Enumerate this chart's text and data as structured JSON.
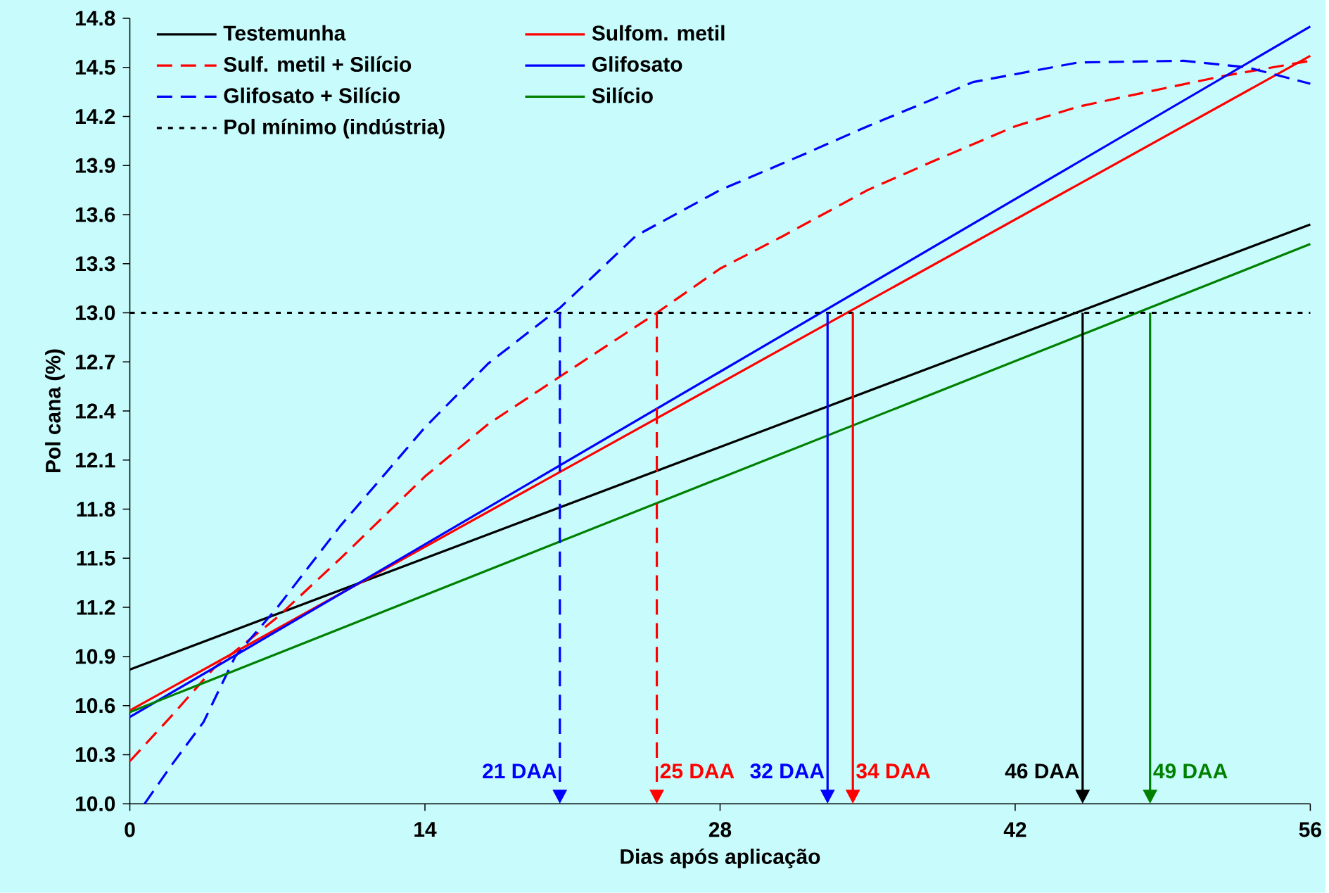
{
  "chart_data": {
    "type": "line",
    "xlabel": "Dias após aplicação",
    "ylabel": "Pol  cana  (%)",
    "xlim": [
      0,
      56
    ],
    "ylim": [
      10,
      14.8
    ],
    "xticks": [
      0,
      14,
      28,
      42,
      56
    ],
    "yticks": [
      {
        "value": 10,
        "label": "10.0"
      },
      10.3,
      10.6,
      10.9,
      11.2,
      11.5,
      11.8,
      12.1,
      12.4,
      12.7,
      {
        "value": 13,
        "label": "13.0"
      },
      13.3,
      13.6,
      13.9,
      14.2,
      14.5,
      14.8
    ],
    "grid": false,
    "legend": "top left",
    "marker": "none",
    "series": [
      {
        "name": "Testemunha",
        "color": "#000000",
        "line_style": "solid",
        "x": [
          0,
          28,
          56
        ],
        "values": [
          10.82,
          12.18,
          13.54
        ]
      },
      {
        "name": "Sulfom. metil",
        "color": "#ff0000",
        "line_style": "solid",
        "x": [
          0,
          28,
          56
        ],
        "values": [
          10.57,
          12.57,
          14.57
        ]
      },
      {
        "name": "Sulf. metil + Silício",
        "color": "#ff0000",
        "line_style": "dashed",
        "x": [
          0,
          2,
          4,
          7,
          10,
          14,
          17,
          20.4,
          25,
          28,
          31,
          35,
          38,
          42,
          45,
          49,
          52,
          56
        ],
        "values": [
          10.26,
          10.54,
          10.83,
          11.14,
          11.5,
          12.0,
          12.32,
          12.61,
          13.0,
          13.27,
          13.47,
          13.75,
          13.92,
          14.14,
          14.26,
          14.37,
          14.45,
          14.54
        ]
      },
      {
        "name": "Glifosato",
        "color": "#0000ff",
        "line_style": "solid",
        "x": [
          0,
          28,
          56
        ],
        "values": [
          10.53,
          12.64,
          14.75
        ]
      },
      {
        "name": "Glifosato + Silício",
        "color": "#0000ff",
        "line_style": "dashed",
        "x": [
          0.7,
          2,
          3.5,
          5,
          7,
          10,
          14,
          17,
          20.4,
          24,
          28,
          32,
          35,
          38,
          40,
          45,
          50,
          53,
          56
        ],
        "values": [
          10.0,
          10.24,
          10.5,
          10.9,
          11.2,
          11.7,
          12.3,
          12.69,
          13.03,
          13.47,
          13.75,
          13.97,
          14.14,
          14.3,
          14.41,
          14.53,
          14.54,
          14.5,
          14.4
        ]
      },
      {
        "name": "Silício",
        "color": "#008000",
        "line_style": "solid",
        "x": [
          0,
          28,
          56
        ],
        "values": [
          10.56,
          11.99,
          13.42
        ]
      }
    ],
    "ref_lines": [
      {
        "axis": "y",
        "value": 13,
        "label": "Pol mínimo (indústria)",
        "color": "#000000",
        "line_style": "dotted"
      }
    ],
    "annotations": [
      {
        "text": "21 DAA",
        "x": 20.4,
        "y": 13
      },
      {
        "text": "25 DAA",
        "x": 25.0,
        "y": 13
      },
      {
        "text": "32 DAA",
        "x": 33.1,
        "y": 13
      },
      {
        "text": "34 DAA",
        "x": 34.3,
        "y": 13
      },
      {
        "text": "46 DAA",
        "x": 45.2,
        "y": 13
      },
      {
        "text": "49 DAA",
        "x": 48.4,
        "y": 13
      }
    ]
  }
}
